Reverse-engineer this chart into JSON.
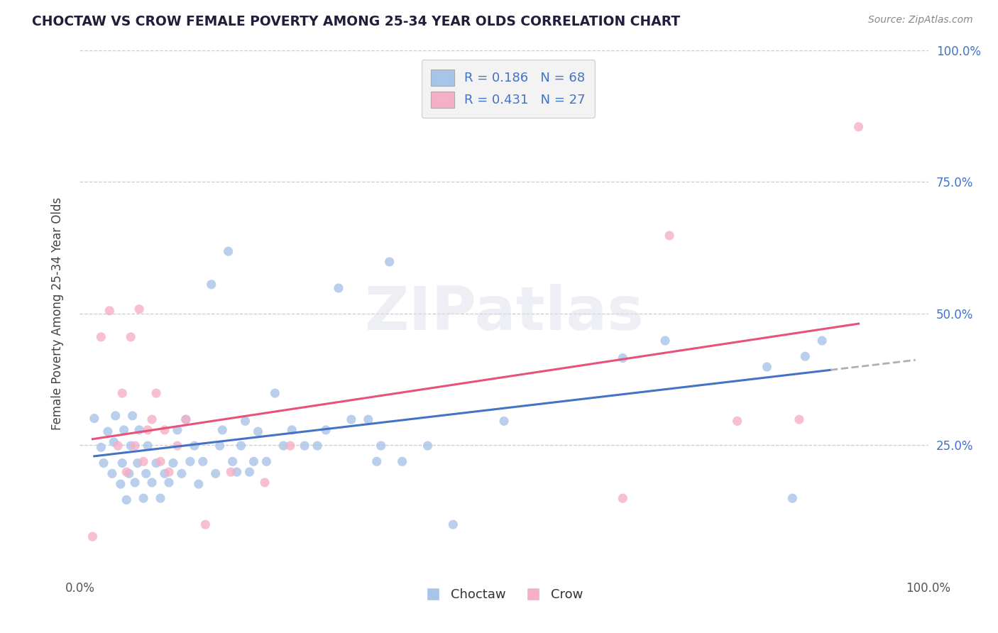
{
  "title": "CHOCTAW VS CROW FEMALE POVERTY AMONG 25-34 YEAR OLDS CORRELATION CHART",
  "source_text": "Source: ZipAtlas.com",
  "ylabel": "Female Poverty Among 25-34 Year Olds",
  "xlim": [
    0.0,
    1.0
  ],
  "ylim": [
    0.0,
    1.0
  ],
  "choctaw_R": "0.186",
  "choctaw_N": "68",
  "crow_R": "0.431",
  "crow_N": "27",
  "choctaw_color": "#a8c4e8",
  "crow_color": "#f5b0c5",
  "choctaw_line_color": "#4472c4",
  "crow_line_color": "#e8527a",
  "trend_ext_color": "#b0b0b0",
  "watermark_text": "ZIPatlas",
  "background_color": "#ffffff",
  "grid_color": "#cccccc",
  "label_color": "#4472c4",
  "title_color": "#1f1f3a",
  "legend_bg": "#f0f0f0",
  "choctaw_scatter": [
    [
      0.017,
      0.3
    ],
    [
      0.025,
      0.245
    ],
    [
      0.028,
      0.215
    ],
    [
      0.033,
      0.275
    ],
    [
      0.038,
      0.195
    ],
    [
      0.04,
      0.255
    ],
    [
      0.042,
      0.305
    ],
    [
      0.048,
      0.175
    ],
    [
      0.05,
      0.215
    ],
    [
      0.052,
      0.278
    ],
    [
      0.055,
      0.145
    ],
    [
      0.058,
      0.195
    ],
    [
      0.06,
      0.248
    ],
    [
      0.062,
      0.305
    ],
    [
      0.065,
      0.178
    ],
    [
      0.068,
      0.215
    ],
    [
      0.07,
      0.278
    ],
    [
      0.075,
      0.148
    ],
    [
      0.078,
      0.195
    ],
    [
      0.08,
      0.248
    ],
    [
      0.085,
      0.178
    ],
    [
      0.09,
      0.215
    ],
    [
      0.095,
      0.148
    ],
    [
      0.1,
      0.195
    ],
    [
      0.105,
      0.178
    ],
    [
      0.11,
      0.215
    ],
    [
      0.115,
      0.278
    ],
    [
      0.12,
      0.195
    ],
    [
      0.125,
      0.298
    ],
    [
      0.13,
      0.218
    ],
    [
      0.135,
      0.248
    ],
    [
      0.14,
      0.175
    ],
    [
      0.145,
      0.218
    ],
    [
      0.155,
      0.555
    ],
    [
      0.16,
      0.195
    ],
    [
      0.165,
      0.248
    ],
    [
      0.168,
      0.278
    ],
    [
      0.175,
      0.618
    ],
    [
      0.18,
      0.218
    ],
    [
      0.185,
      0.198
    ],
    [
      0.19,
      0.248
    ],
    [
      0.195,
      0.295
    ],
    [
      0.2,
      0.198
    ],
    [
      0.205,
      0.218
    ],
    [
      0.21,
      0.275
    ],
    [
      0.22,
      0.218
    ],
    [
      0.23,
      0.348
    ],
    [
      0.24,
      0.248
    ],
    [
      0.25,
      0.278
    ],
    [
      0.265,
      0.248
    ],
    [
      0.28,
      0.248
    ],
    [
      0.29,
      0.278
    ],
    [
      0.305,
      0.548
    ],
    [
      0.32,
      0.298
    ],
    [
      0.34,
      0.298
    ],
    [
      0.35,
      0.218
    ],
    [
      0.355,
      0.248
    ],
    [
      0.365,
      0.598
    ],
    [
      0.38,
      0.218
    ],
    [
      0.41,
      0.248
    ],
    [
      0.44,
      0.098
    ],
    [
      0.5,
      0.295
    ],
    [
      0.64,
      0.415
    ],
    [
      0.69,
      0.448
    ],
    [
      0.81,
      0.398
    ],
    [
      0.84,
      0.148
    ],
    [
      0.855,
      0.418
    ],
    [
      0.875,
      0.448
    ]
  ],
  "crow_scatter": [
    [
      0.015,
      0.075
    ],
    [
      0.025,
      0.455
    ],
    [
      0.035,
      0.505
    ],
    [
      0.045,
      0.248
    ],
    [
      0.05,
      0.348
    ],
    [
      0.055,
      0.198
    ],
    [
      0.06,
      0.455
    ],
    [
      0.065,
      0.248
    ],
    [
      0.07,
      0.508
    ],
    [
      0.075,
      0.218
    ],
    [
      0.08,
      0.278
    ],
    [
      0.085,
      0.298
    ],
    [
      0.09,
      0.348
    ],
    [
      0.095,
      0.218
    ],
    [
      0.1,
      0.278
    ],
    [
      0.105,
      0.198
    ],
    [
      0.115,
      0.248
    ],
    [
      0.125,
      0.298
    ],
    [
      0.148,
      0.098
    ],
    [
      0.178,
      0.198
    ],
    [
      0.218,
      0.178
    ],
    [
      0.248,
      0.248
    ],
    [
      0.64,
      0.148
    ],
    [
      0.695,
      0.648
    ],
    [
      0.775,
      0.295
    ],
    [
      0.848,
      0.298
    ],
    [
      0.918,
      0.855
    ]
  ]
}
